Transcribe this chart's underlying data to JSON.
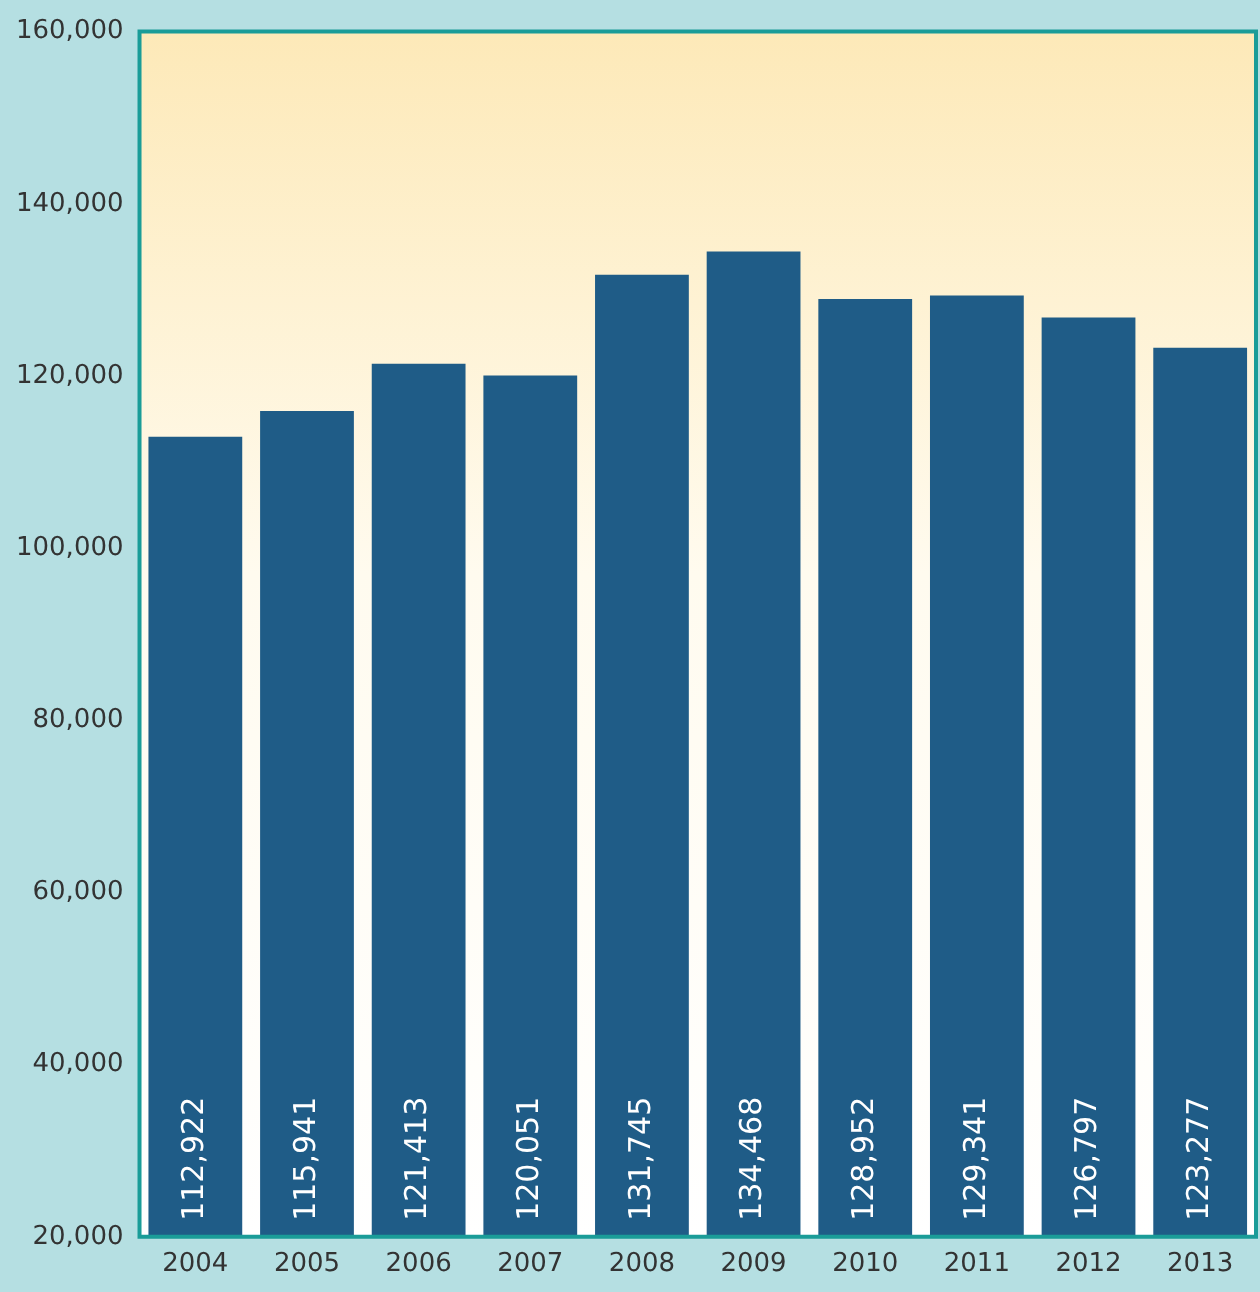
{
  "chart_data": {
    "type": "bar",
    "categories": [
      "2004",
      "2005",
      "2006",
      "2007",
      "2008",
      "2009",
      "2010",
      "2011",
      "2012",
      "2013"
    ],
    "values": [
      112922,
      115941,
      121413,
      120051,
      131745,
      134468,
      128952,
      129341,
      126797,
      123277
    ],
    "color": "#1f5c87",
    "ylim": [
      20000,
      160000
    ],
    "yticks": [
      {
        "value": 20000,
        "label": "20,000"
      },
      {
        "value": 40000,
        "label": "40,000"
      },
      {
        "value": 60000,
        "label": "60,000"
      },
      {
        "value": 80000,
        "label": "80,000"
      },
      {
        "value": 100000,
        "label": "100,000"
      },
      {
        "value": 120000,
        "label": "120,000"
      },
      {
        "value": 140000,
        "label": "140,000"
      },
      {
        "value": 160000,
        "label": "160,000"
      }
    ],
    "grid": false,
    "legend": false,
    "value_labels": [
      "112,922",
      "115,941",
      "121,413",
      "120,051",
      "131,745",
      "134,468",
      "128,952",
      "129,341",
      "126,797",
      "123,277"
    ]
  }
}
